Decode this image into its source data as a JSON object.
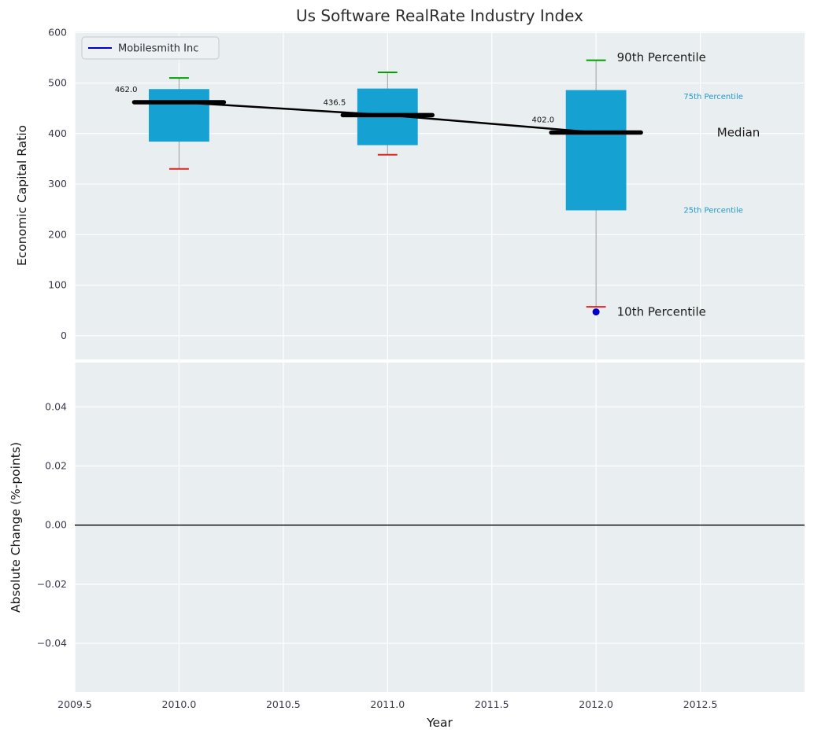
{
  "chart_data": {
    "type": "boxplot",
    "title": "Us Software RealRate Industry Index",
    "xlabel": "Year",
    "xlim": [
      2009.5,
      2013.0
    ],
    "x_ticks": [
      2009.5,
      2010,
      2010.5,
      2011,
      2011.5,
      2012,
      2012.5
    ],
    "x_tick_labels": [
      "2009.5",
      "2010.0",
      "2010.5",
      "2011.0",
      "2011.5",
      "2012.0",
      "2012.5"
    ],
    "top_panel": {
      "ylabel": "Economic Capital Ratio",
      "ylim": [
        -47,
        602
      ],
      "y_ticks": [
        0,
        100,
        200,
        300,
        400,
        500,
        600
      ],
      "box_color": "#15a1d2",
      "whisker_color": "#999999",
      "cap_high_color": "#00a000",
      "cap_low_color": "#e02424",
      "median_color": "#000000",
      "boxes": [
        {
          "x": 2010,
          "median": 462.0,
          "median_label": "462.0",
          "q1": 384,
          "q3": 488,
          "p10": 330,
          "p90": 510
        },
        {
          "x": 2011,
          "median": 436.5,
          "median_label": "436.5",
          "q1": 377,
          "q3": 489,
          "p10": 358,
          "p90": 521
        },
        {
          "x": 2012,
          "median": 402.0,
          "median_label": "402.0",
          "q1": 248,
          "q3": 486,
          "p10": 57,
          "p90": 545
        }
      ],
      "company_series": {
        "name": "Mobilesmith Inc",
        "color": "#0000cc",
        "points": [
          {
            "x": 2012,
            "y": 47
          }
        ]
      },
      "annotations": [
        {
          "text": "90th Percentile",
          "x": 2012.1,
          "y": 551,
          "color": "#1a1a1a",
          "size": 15
        },
        {
          "text": "75th Percentile",
          "x": 2012.42,
          "y": 476,
          "color": "#2299cc",
          "size": 10
        },
        {
          "text": "Median",
          "x": 2012.58,
          "y": 402,
          "color": "#1a1a1a",
          "size": 15
        },
        {
          "text": "25th Percentile",
          "x": 2012.42,
          "y": 251,
          "color": "#2299cc",
          "size": 10
        },
        {
          "text": "10th Percentile",
          "x": 2012.1,
          "y": 47,
          "color": "#1a1a1a",
          "size": 15
        }
      ]
    },
    "bottom_panel": {
      "ylabel": "Absolute Change (%-points)",
      "ylim": [
        -0.0565,
        0.055
      ],
      "y_ticks": [
        0.04,
        0.02,
        0,
        -0.02,
        -0.04
      ],
      "y_tick_labels": [
        "0.04",
        "0.02",
        "0.00",
        "−0.02",
        "−0.04"
      ],
      "zero_line_y": 0
    },
    "style": {
      "plot_bg": "#e9eef0",
      "grid_color": "#ffffff",
      "tick_color": "#3b3b4b",
      "label_color": "#141414",
      "title_color": "#2e2e2e",
      "legend_bg": "#eef1f3",
      "legend_border": "#c3c9ce"
    }
  }
}
